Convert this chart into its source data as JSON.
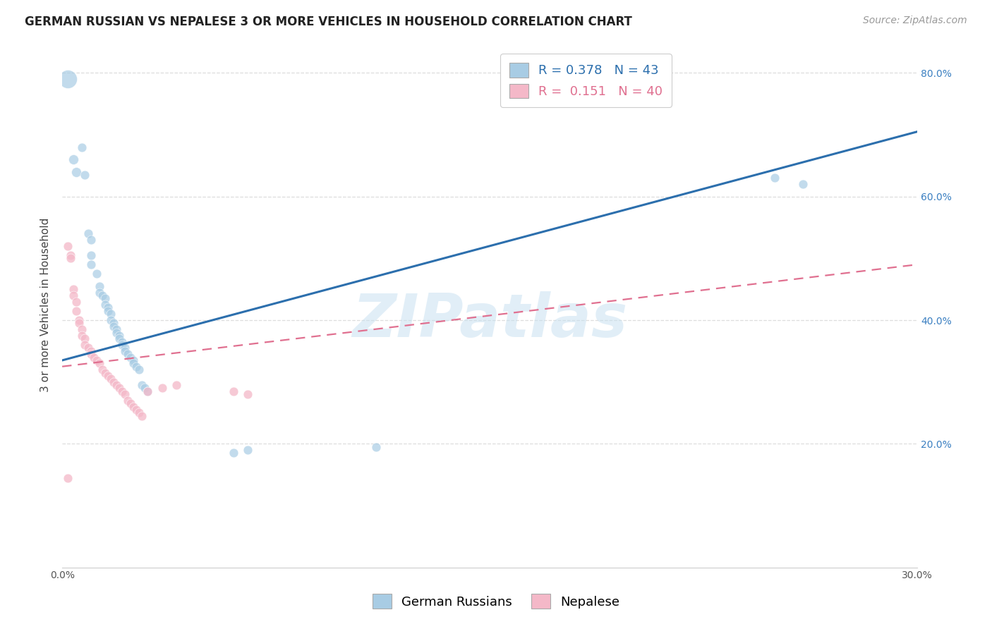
{
  "title": "GERMAN RUSSIAN VS NEPALESE 3 OR MORE VEHICLES IN HOUSEHOLD CORRELATION CHART",
  "source": "Source: ZipAtlas.com",
  "ylabel": "3 or more Vehicles in Household",
  "xlim": [
    0.0,
    0.3
  ],
  "ylim": [
    0.0,
    0.85
  ],
  "xticks": [
    0.0,
    0.05,
    0.1,
    0.15,
    0.2,
    0.25,
    0.3
  ],
  "xtick_labels": [
    "0.0%",
    "",
    "",
    "",
    "",
    "",
    "30.0%"
  ],
  "yticks_right": [
    0.2,
    0.4,
    0.6,
    0.8
  ],
  "ytick_labels_right": [
    "20.0%",
    "40.0%",
    "60.0%",
    "80.0%"
  ],
  "legend_blue_r": "0.378",
  "legend_blue_n": "43",
  "legend_pink_r": "0.151",
  "legend_pink_n": "40",
  "blue_color": "#a8cce4",
  "pink_color": "#f4b8c8",
  "blue_line_color": "#2c6fad",
  "pink_line_color": "#e07090",
  "blue_line_x0": 0.0,
  "blue_line_y0": 0.335,
  "blue_line_x1": 0.3,
  "blue_line_y1": 0.705,
  "pink_line_x0": 0.0,
  "pink_line_y0": 0.325,
  "pink_line_x1": 0.3,
  "pink_line_y1": 0.49,
  "watermark": "ZIPatlas",
  "blue_dots": [
    [
      0.002,
      0.79
    ],
    [
      0.004,
      0.66
    ],
    [
      0.005,
      0.64
    ],
    [
      0.007,
      0.68
    ],
    [
      0.008,
      0.635
    ],
    [
      0.009,
      0.54
    ],
    [
      0.01,
      0.53
    ],
    [
      0.01,
      0.505
    ],
    [
      0.01,
      0.49
    ],
    [
      0.012,
      0.475
    ],
    [
      0.013,
      0.455
    ],
    [
      0.013,
      0.445
    ],
    [
      0.014,
      0.44
    ],
    [
      0.015,
      0.435
    ],
    [
      0.015,
      0.425
    ],
    [
      0.016,
      0.42
    ],
    [
      0.016,
      0.415
    ],
    [
      0.017,
      0.41
    ],
    [
      0.017,
      0.4
    ],
    [
      0.018,
      0.395
    ],
    [
      0.018,
      0.39
    ],
    [
      0.019,
      0.385
    ],
    [
      0.019,
      0.38
    ],
    [
      0.02,
      0.375
    ],
    [
      0.02,
      0.37
    ],
    [
      0.021,
      0.365
    ],
    [
      0.021,
      0.36
    ],
    [
      0.022,
      0.355
    ],
    [
      0.022,
      0.35
    ],
    [
      0.023,
      0.345
    ],
    [
      0.024,
      0.34
    ],
    [
      0.025,
      0.335
    ],
    [
      0.025,
      0.33
    ],
    [
      0.026,
      0.325
    ],
    [
      0.027,
      0.32
    ],
    [
      0.028,
      0.295
    ],
    [
      0.029,
      0.29
    ],
    [
      0.03,
      0.285
    ],
    [
      0.06,
      0.185
    ],
    [
      0.065,
      0.19
    ],
    [
      0.11,
      0.195
    ],
    [
      0.25,
      0.63
    ],
    [
      0.26,
      0.62
    ]
  ],
  "pink_dots": [
    [
      0.002,
      0.52
    ],
    [
      0.003,
      0.505
    ],
    [
      0.003,
      0.5
    ],
    [
      0.004,
      0.45
    ],
    [
      0.004,
      0.44
    ],
    [
      0.005,
      0.43
    ],
    [
      0.005,
      0.415
    ],
    [
      0.006,
      0.4
    ],
    [
      0.006,
      0.395
    ],
    [
      0.007,
      0.385
    ],
    [
      0.007,
      0.375
    ],
    [
      0.008,
      0.37
    ],
    [
      0.008,
      0.36
    ],
    [
      0.009,
      0.355
    ],
    [
      0.01,
      0.35
    ],
    [
      0.01,
      0.345
    ],
    [
      0.011,
      0.34
    ],
    [
      0.012,
      0.335
    ],
    [
      0.013,
      0.33
    ],
    [
      0.014,
      0.32
    ],
    [
      0.015,
      0.315
    ],
    [
      0.016,
      0.31
    ],
    [
      0.017,
      0.305
    ],
    [
      0.018,
      0.3
    ],
    [
      0.019,
      0.295
    ],
    [
      0.02,
      0.29
    ],
    [
      0.021,
      0.285
    ],
    [
      0.022,
      0.28
    ],
    [
      0.023,
      0.27
    ],
    [
      0.024,
      0.265
    ],
    [
      0.025,
      0.26
    ],
    [
      0.026,
      0.255
    ],
    [
      0.027,
      0.25
    ],
    [
      0.028,
      0.245
    ],
    [
      0.03,
      0.285
    ],
    [
      0.035,
      0.29
    ],
    [
      0.04,
      0.295
    ],
    [
      0.06,
      0.285
    ],
    [
      0.065,
      0.28
    ],
    [
      0.002,
      0.145
    ]
  ],
  "background_color": "#ffffff",
  "grid_color": "#dddddd",
  "title_fontsize": 12,
  "source_fontsize": 10,
  "legend_fontsize": 13,
  "axis_label_fontsize": 11,
  "tick_fontsize": 10
}
